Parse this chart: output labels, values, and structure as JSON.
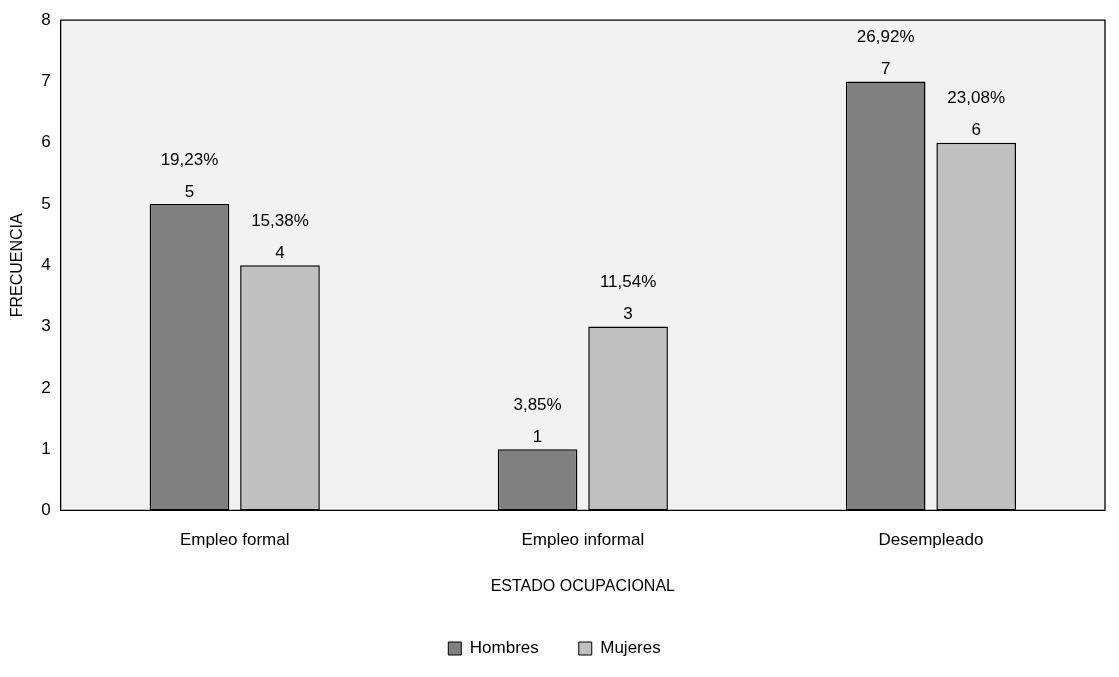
{
  "chart_data": {
    "type": "bar",
    "xlabel": "ESTADO OCUPACIONAL",
    "ylabel": "FRECUENCIA",
    "categories": [
      "Empleo formal",
      "Empleo informal",
      "Desempleado"
    ],
    "series": [
      {
        "name": "Hombres",
        "color": "#808080",
        "values": [
          5,
          1,
          7
        ],
        "value_labels": [
          "19,23%\n5",
          "3,85%\n1",
          "26,92%\n7"
        ]
      },
      {
        "name": "Mujeres",
        "color": "#c0c0c0",
        "values": [
          4,
          3,
          6
        ],
        "value_labels": [
          "15,38%\n4",
          "11,54%\n3",
          "23,08%\n6"
        ]
      }
    ],
    "ylim": [
      0,
      8
    ],
    "yticks": [
      0,
      1,
      2,
      3,
      4,
      5,
      6,
      7,
      8
    ],
    "grid": false,
    "legend": "bottom"
  }
}
